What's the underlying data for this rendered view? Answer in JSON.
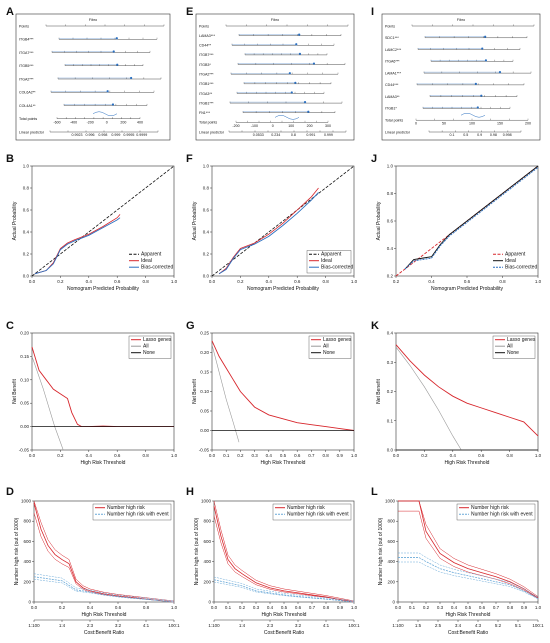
{
  "panels": [
    {
      "letter": "A"
    },
    {
      "letter": "B"
    },
    {
      "letter": "C"
    },
    {
      "letter": "D"
    },
    {
      "letter": "E"
    },
    {
      "letter": "F"
    },
    {
      "letter": "G"
    },
    {
      "letter": "H"
    },
    {
      "letter": "I"
    },
    {
      "letter": "J"
    },
    {
      "letter": "K"
    },
    {
      "letter": "L"
    }
  ],
  "chart_data": [
    {
      "panel": "A",
      "type": "table",
      "header": "Points",
      "title": "Fibro",
      "rows": [
        "Points",
        "ITGB4***",
        "ITGA7***",
        "ITGB5***",
        "ITGA2***",
        "COL6A2**",
        "COL4A1**",
        "Total points",
        "Linear predictor"
      ],
      "total_ticks": [
        "-600",
        "-400",
        "-200",
        "0",
        "200",
        "400"
      ],
      "prob_ticks": [
        "0.9923",
        "0.996",
        "0.998",
        "0.999",
        "0.9995",
        "0.9999"
      ]
    },
    {
      "panel": "E",
      "type": "table",
      "title": "Fibro",
      "rows": [
        "Points",
        "LAMA3***",
        "CD44**",
        "ITGB7***",
        "ITGB3*",
        "ITGA2***",
        "ITGB1***",
        "ITGA3**",
        "ITGB1***",
        "FN1***",
        "Total points",
        "Linear predictor"
      ],
      "total_ticks": [
        "-200",
        "-100",
        "0",
        "100",
        "200",
        "300"
      ],
      "prob_ticks": [
        "0.0533",
        "0.234",
        "0.8",
        "0.991",
        "0.999"
      ]
    },
    {
      "panel": "I",
      "type": "table",
      "title": "Fibro",
      "rows": [
        "Points",
        "SDC1***",
        "LAMC2***",
        "ITGA6***",
        "LAMA1***",
        "CD44***",
        "LAMA3**",
        "ITGB1*",
        "Total points",
        "Linear predictor"
      ],
      "total_ticks": [
        "0",
        "50",
        "100",
        "150",
        "200"
      ],
      "prob_ticks": [
        "0.1",
        "0.5",
        "0.9",
        "0.98",
        "0.998"
      ]
    },
    {
      "panel": "B",
      "type": "line",
      "xlabel": "Nomogram Predicted Probability",
      "ylabel": "Actual Probability",
      "xlim": [
        0,
        1
      ],
      "ylim": [
        0,
        1
      ],
      "x_ticks": [
        "0.0",
        "0.2",
        "0.4",
        "0.6",
        "0.8",
        "1.0"
      ],
      "y_ticks": [
        "0.0",
        "0.2",
        "0.4",
        "0.6",
        "0.8",
        "1.0"
      ],
      "legend": [
        "Apparent",
        "Ideal",
        "Bias-corrected"
      ],
      "series": [
        {
          "name": "Ideal",
          "x": [
            0,
            1
          ],
          "y": [
            0,
            1
          ]
        },
        {
          "name": "Apparent",
          "x": [
            0.02,
            0.1,
            0.15,
            0.2,
            0.25,
            0.3,
            0.4,
            0.5,
            0.6,
            0.62
          ],
          "y": [
            0.02,
            0.05,
            0.12,
            0.25,
            0.3,
            0.33,
            0.38,
            0.45,
            0.53,
            0.56
          ]
        },
        {
          "name": "Bias-corrected",
          "x": [
            0.02,
            0.1,
            0.15,
            0.2,
            0.25,
            0.3,
            0.4,
            0.5,
            0.6,
            0.62
          ],
          "y": [
            0.02,
            0.05,
            0.11,
            0.24,
            0.29,
            0.32,
            0.37,
            0.44,
            0.51,
            0.53
          ]
        }
      ]
    },
    {
      "panel": "F",
      "type": "line",
      "xlabel": "Nomogram Predicted Probability",
      "ylabel": "Actual Probability",
      "xlim": [
        0,
        1
      ],
      "ylim": [
        0,
        1
      ],
      "x_ticks": [
        "0.0",
        "0.2",
        "0.4",
        "0.6",
        "0.8",
        "1.0"
      ],
      "y_ticks": [
        "0.0",
        "0.2",
        "0.4",
        "0.6",
        "0.8",
        "1.0"
      ],
      "legend": [
        "Apparent",
        "Ideal",
        "Bias-corrected"
      ],
      "series": [
        {
          "name": "Ideal",
          "x": [
            0,
            1
          ],
          "y": [
            0,
            1
          ]
        },
        {
          "name": "Apparent",
          "x": [
            0.05,
            0.1,
            0.15,
            0.2,
            0.3,
            0.4,
            0.5,
            0.6,
            0.7,
            0.75
          ],
          "y": [
            0.02,
            0.07,
            0.17,
            0.25,
            0.3,
            0.38,
            0.48,
            0.6,
            0.72,
            0.8
          ]
        },
        {
          "name": "Bias-corrected",
          "x": [
            0.05,
            0.1,
            0.15,
            0.2,
            0.3,
            0.4,
            0.5,
            0.6,
            0.7,
            0.75
          ],
          "y": [
            0.02,
            0.06,
            0.16,
            0.24,
            0.29,
            0.36,
            0.46,
            0.57,
            0.69,
            0.76
          ]
        }
      ]
    },
    {
      "panel": "J",
      "type": "line",
      "xlabel": "Nomogram Predicted Probability",
      "ylabel": "Actual Probability",
      "xlim": [
        0.2,
        1
      ],
      "ylim": [
        0.2,
        1
      ],
      "x_ticks": [
        "0.2",
        "0.4",
        "0.6",
        "0.8",
        "1.0"
      ],
      "y_ticks": [
        "0.2",
        "0.4",
        "0.6",
        "0.8",
        "1.0"
      ],
      "legend": [
        "Apparent",
        "Ideal",
        "Bias-corrected"
      ],
      "series": [
        {
          "name": "Ideal",
          "x": [
            0.2,
            1
          ],
          "y": [
            0.2,
            1
          ]
        },
        {
          "name": "Apparent",
          "x": [
            0.25,
            0.3,
            0.35,
            0.4,
            0.45,
            0.5,
            0.6,
            0.7,
            0.8,
            0.9,
            1.0
          ],
          "y": [
            0.25,
            0.32,
            0.33,
            0.34,
            0.43,
            0.5,
            0.6,
            0.7,
            0.8,
            0.9,
            1.0
          ]
        },
        {
          "name": "Bias-corrected",
          "x": [
            0.25,
            0.3,
            0.35,
            0.4,
            0.45,
            0.5,
            0.6,
            0.7,
            0.8,
            0.9,
            1.0
          ],
          "y": [
            0.25,
            0.31,
            0.32,
            0.33,
            0.42,
            0.49,
            0.59,
            0.69,
            0.79,
            0.89,
            0.99
          ]
        }
      ]
    },
    {
      "panel": "C",
      "type": "line",
      "xlabel": "High Risk Threshold",
      "ylabel": "Net Benefit",
      "xlim": [
        0,
        1
      ],
      "ylim": [
        -0.05,
        0.2
      ],
      "x_ticks": [
        "0.0",
        "0.2",
        "0.4",
        "0.6",
        "0.8",
        "1.0"
      ],
      "y_ticks": [
        "-0.05",
        "0.00",
        "0.05",
        "0.10",
        "0.15",
        "0.20"
      ],
      "legend": [
        "Lasso genes",
        "All",
        "None"
      ],
      "series": [
        {
          "name": "Lasso genes",
          "x": [
            0,
            0.05,
            0.1,
            0.15,
            0.2,
            0.25,
            0.28,
            0.32,
            0.35,
            0.4,
            0.5,
            0.6,
            1.0
          ],
          "y": [
            0.17,
            0.12,
            0.1,
            0.08,
            0.07,
            0.06,
            0.03,
            0.005,
            0.0,
            0.0,
            0.001,
            0.0,
            0.0
          ]
        },
        {
          "name": "All",
          "x": [
            0,
            0.08,
            0.16,
            0.22
          ],
          "y": [
            0.15,
            0.08,
            0.0,
            -0.05
          ]
        },
        {
          "name": "None",
          "x": [
            0,
            1
          ],
          "y": [
            0,
            0
          ]
        }
      ]
    },
    {
      "panel": "G",
      "type": "line",
      "xlabel": "High Risk Threshold",
      "ylabel": "Net Benefit",
      "xlim": [
        0,
        1
      ],
      "ylim": [
        -0.05,
        0.25
      ],
      "x_ticks": [
        "0.0",
        "0.1",
        "0.2",
        "0.3",
        "0.4",
        "0.5",
        "0.6",
        "0.7",
        "0.8",
        "0.9",
        "1.0"
      ],
      "y_ticks": [
        "-0.05",
        "0.00",
        "0.05",
        "0.10",
        "0.15",
        "0.20",
        "0.25"
      ],
      "legend": [
        "Lasso genes",
        "All",
        "None"
      ],
      "series": [
        {
          "name": "Lasso genes",
          "x": [
            0,
            0.05,
            0.1,
            0.15,
            0.2,
            0.3,
            0.4,
            0.5,
            0.6,
            0.7,
            0.8,
            0.9,
            1.0
          ],
          "y": [
            0.23,
            0.19,
            0.16,
            0.13,
            0.1,
            0.06,
            0.04,
            0.03,
            0.02,
            0.015,
            0.01,
            0.005,
            0.0
          ]
        },
        {
          "name": "All",
          "x": [
            0,
            0.05,
            0.1,
            0.15,
            0.19
          ],
          "y": [
            0.22,
            0.15,
            0.08,
            0.02,
            -0.03
          ]
        },
        {
          "name": "None",
          "x": [
            0,
            1
          ],
          "y": [
            0,
            0
          ]
        }
      ]
    },
    {
      "panel": "K",
      "type": "line",
      "xlabel": "High Risk Threshold",
      "ylabel": "Net Benefit",
      "xlim": [
        0,
        1
      ],
      "ylim": [
        0,
        0.5
      ],
      "x_ticks": [
        "0.0",
        "0.2",
        "0.4",
        "0.6",
        "0.8",
        "1.0"
      ],
      "y_ticks": [
        "0.0",
        "0.1",
        "0.2",
        "0.3",
        "0.4"
      ],
      "legend": [
        "Lasso genes",
        "All",
        "None"
      ],
      "series": [
        {
          "name": "Lasso genes",
          "x": [
            0,
            0.1,
            0.2,
            0.3,
            0.4,
            0.5,
            0.6,
            0.7,
            0.8,
            0.9,
            0.95,
            1.0
          ],
          "y": [
            0.45,
            0.38,
            0.32,
            0.27,
            0.23,
            0.2,
            0.18,
            0.16,
            0.14,
            0.12,
            0.09,
            0.06
          ]
        },
        {
          "name": "All",
          "x": [
            0,
            0.1,
            0.2,
            0.3,
            0.4,
            0.46
          ],
          "y": [
            0.44,
            0.36,
            0.27,
            0.17,
            0.06,
            0.0
          ]
        },
        {
          "name": "None",
          "x": [
            0,
            1
          ],
          "y": [
            0,
            0
          ]
        }
      ]
    },
    {
      "panel": "D",
      "type": "line",
      "xlabel": "High Risk Threshold",
      "ylabel": "Number high risk (out of 1000)",
      "x2label": "Cost:Benefit Ratio",
      "xlim": [
        0,
        1
      ],
      "ylim": [
        0,
        1000
      ],
      "x_ticks": [
        "0.0",
        "0.2",
        "0.4",
        "0.6",
        "0.8",
        "1.0"
      ],
      "y_ticks": [
        "0",
        "200",
        "400",
        "600",
        "800",
        "1000"
      ],
      "x2_ticks": [
        "1:100",
        "1:4",
        "2:3",
        "3:2",
        "4:1",
        "100:1"
      ],
      "legend": [
        "Number high risk",
        "Number high risk with event"
      ],
      "series": [
        {
          "name": "Number high risk",
          "x": [
            0,
            0.05,
            0.1,
            0.15,
            0.2,
            0.25,
            0.3,
            0.35,
            0.4,
            0.5,
            0.6,
            0.7,
            0.8,
            0.9,
            1.0
          ],
          "y": [
            980,
            720,
            560,
            470,
            420,
            380,
            200,
            140,
            110,
            80,
            60,
            45,
            30,
            15,
            0
          ]
        },
        {
          "name": "Number high risk with event",
          "x": [
            0,
            0.1,
            0.2,
            0.3,
            0.4,
            0.5,
            0.6,
            0.7,
            0.8,
            0.9,
            1.0
          ],
          "y": [
            250,
            230,
            210,
            120,
            100,
            75,
            55,
            40,
            28,
            14,
            0
          ]
        }
      ]
    },
    {
      "panel": "H",
      "type": "line",
      "xlabel": "High Risk Threshold",
      "ylabel": "Number high risk (out of 1000)",
      "x2label": "Cost:Benefit Ratio",
      "xlim": [
        0,
        1
      ],
      "ylim": [
        0,
        1000
      ],
      "x_ticks": [
        "0.0",
        "0.1",
        "0.2",
        "0.3",
        "0.4",
        "0.5",
        "0.6",
        "0.7",
        "0.8",
        "0.9",
        "1.0"
      ],
      "y_ticks": [
        "0",
        "200",
        "400",
        "600",
        "800",
        "1000"
      ],
      "x2_ticks": [
        "1:100",
        "1:4",
        "2:3",
        "3:2",
        "4:1",
        "100:1"
      ],
      "legend": [
        "Number high risk",
        "Number high risk with event"
      ],
      "series": [
        {
          "name": "Number high risk",
          "x": [
            0,
            0.05,
            0.1,
            0.15,
            0.2,
            0.3,
            0.4,
            0.5,
            0.6,
            0.7,
            0.8,
            0.9,
            1.0
          ],
          "y": [
            950,
            650,
            420,
            330,
            280,
            190,
            140,
            110,
            90,
            70,
            50,
            25,
            0
          ]
        },
        {
          "name": "Number high risk with event",
          "x": [
            0,
            0.1,
            0.2,
            0.3,
            0.4,
            0.5,
            0.6,
            0.7,
            0.8,
            0.9,
            1.0
          ],
          "y": [
            220,
            190,
            160,
            110,
            90,
            70,
            55,
            42,
            30,
            15,
            0
          ]
        }
      ]
    },
    {
      "panel": "L",
      "type": "line",
      "xlabel": "High Risk Threshold",
      "ylabel": "Number high risk (out of 1000)",
      "x2label": "Cost:Benefit Ratio",
      "xlim": [
        0,
        1
      ],
      "ylim": [
        0,
        1000
      ],
      "x_ticks": [
        "0.0",
        "0.1",
        "0.2",
        "0.3",
        "0.4",
        "0.5",
        "0.6",
        "0.7",
        "0.8",
        "0.9",
        "1.0"
      ],
      "y_ticks": [
        "0",
        "200",
        "400",
        "600",
        "800",
        "1000"
      ],
      "x2_ticks": [
        "1:100",
        "1:5",
        "2:5",
        "3:4",
        "4:3",
        "5:2",
        "5:1",
        "100:1"
      ],
      "legend": [
        "Number high risk",
        "Number high risk with event"
      ],
      "series": [
        {
          "name": "Number high risk",
          "x": [
            0,
            0.1,
            0.15,
            0.2,
            0.3,
            0.4,
            0.5,
            0.6,
            0.7,
            0.8,
            0.9,
            1.0
          ],
          "y": [
            1000,
            1000,
            1000,
            700,
            480,
            390,
            330,
            290,
            250,
            200,
            130,
            40
          ]
        },
        {
          "name": "Number high risk with event",
          "x": [
            0,
            0.1,
            0.15,
            0.2,
            0.3,
            0.4,
            0.5,
            0.6,
            0.7,
            0.8,
            0.9,
            1.0
          ],
          "y": [
            440,
            440,
            440,
            400,
            330,
            290,
            260,
            230,
            200,
            170,
            110,
            35
          ]
        }
      ]
    }
  ],
  "colors": {
    "red": "#d7262c",
    "blue": "#2a6fc0",
    "gray": "#9a9a9a",
    "black": "#111111",
    "lightblue": "#6aa9d8"
  }
}
